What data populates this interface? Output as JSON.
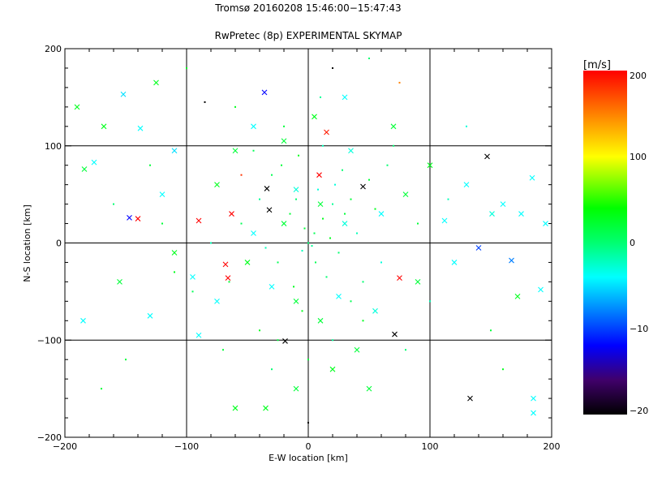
{
  "chart_data": {
    "type": "scatter",
    "title": "Tromsø 20160208 15:46:00−15:47:43",
    "subtitle": "RwPretec (8p) EXPERIMENTAL SKYMAP",
    "xlabel": "E-W location [km]",
    "ylabel": "N-S location [km]",
    "xlim": [
      -200,
      200
    ],
    "ylim": [
      -200,
      200
    ],
    "xticks": [
      -200,
      -100,
      0,
      100,
      200
    ],
    "yticks": [
      -200,
      -100,
      0,
      100,
      200
    ],
    "xtick_labels": [
      "−200",
      "−100",
      "0",
      "100",
      "200"
    ],
    "ytick_labels": [
      "−200",
      "−100",
      "0",
      "100",
      "200"
    ],
    "grid": [
      -100,
      0,
      100
    ],
    "colorbar": {
      "label": "[m/s]",
      "range": [
        -200,
        200
      ],
      "ticks": [
        200,
        100,
        0,
        -100,
        -200
      ],
      "tick_labels": [
        "200",
        "100",
        "0",
        "−100",
        "−200"
      ],
      "stops": [
        {
          "v": -200,
          "color": "#000000"
        },
        {
          "v": -160,
          "color": "#40006a"
        },
        {
          "v": -120,
          "color": "#0000ff"
        },
        {
          "v": -80,
          "color": "#0080ff"
        },
        {
          "v": -40,
          "color": "#00ffff"
        },
        {
          "v": 0,
          "color": "#00ff70"
        },
        {
          "v": 40,
          "color": "#00ff00"
        },
        {
          "v": 100,
          "color": "#ffff00"
        },
        {
          "v": 150,
          "color": "#ff8000"
        },
        {
          "v": 200,
          "color": "#ff0000"
        }
      ]
    },
    "point_fields": [
      "x_km",
      "y_km",
      "velocity_ms",
      "marker(0=dot,1=cross)"
    ],
    "points": [
      [
        147,
        89,
        -200,
        1
      ],
      [
        133,
        -160,
        -200,
        1
      ],
      [
        71,
        -94,
        -200,
        1
      ],
      [
        -19,
        -101,
        -200,
        1
      ],
      [
        -147,
        26,
        -120,
        1
      ],
      [
        -140,
        25,
        200,
        1
      ],
      [
        -90,
        23,
        200,
        1
      ],
      [
        75,
        -36,
        200,
        1
      ],
      [
        -36,
        155,
        -120,
        1
      ],
      [
        9,
        70,
        200,
        1
      ],
      [
        15,
        114,
        190,
        1
      ],
      [
        185,
        -175,
        -40,
        1
      ],
      [
        167,
        -18,
        -80,
        1
      ],
      [
        140,
        -5,
        -100,
        1
      ],
      [
        -32,
        34,
        -200,
        1
      ],
      [
        -34,
        56,
        -200,
        1
      ],
      [
        45,
        58,
        -200,
        1
      ],
      [
        -63,
        30,
        200,
        1
      ],
      [
        -66,
        -36,
        200,
        1
      ],
      [
        -68,
        -22,
        200,
        1
      ],
      [
        -152,
        153,
        -50,
        1
      ],
      [
        -168,
        120,
        30,
        1
      ],
      [
        184,
        67,
        -40,
        1
      ],
      [
        151,
        30,
        -30,
        1
      ],
      [
        112,
        23,
        -40,
        1
      ],
      [
        172,
        -55,
        30,
        1
      ],
      [
        191,
        -48,
        -40,
        1
      ],
      [
        -184,
        76,
        20,
        1
      ],
      [
        -176,
        83,
        -40,
        1
      ],
      [
        -138,
        118,
        -40,
        1
      ],
      [
        -125,
        165,
        30,
        1
      ],
      [
        -110,
        95,
        -50,
        1
      ],
      [
        -120,
        50,
        -40,
        1
      ],
      [
        -95,
        -35,
        -40,
        1
      ],
      [
        -130,
        -75,
        -40,
        1
      ],
      [
        -155,
        -40,
        20,
        1
      ],
      [
        -185,
        -80,
        -40,
        1
      ],
      [
        -60,
        -170,
        30,
        1
      ],
      [
        -35,
        -170,
        30,
        1
      ],
      [
        -10,
        -150,
        20,
        1
      ],
      [
        20,
        -130,
        30,
        1
      ],
      [
        40,
        -110,
        20,
        1
      ],
      [
        55,
        -70,
        -30,
        1
      ],
      [
        90,
        -40,
        20,
        1
      ],
      [
        120,
        -20,
        -40,
        1
      ],
      [
        160,
        40,
        -40,
        1
      ],
      [
        175,
        30,
        -40,
        1
      ],
      [
        195,
        20,
        -40,
        1
      ],
      [
        130,
        60,
        -40,
        1
      ],
      [
        100,
        80,
        30,
        1
      ],
      [
        80,
        50,
        20,
        1
      ],
      [
        60,
        30,
        -40,
        1
      ],
      [
        30,
        20,
        -30,
        1
      ],
      [
        10,
        40,
        20,
        1
      ],
      [
        -10,
        55,
        -30,
        1
      ],
      [
        -20,
        20,
        20,
        1
      ],
      [
        -45,
        10,
        -40,
        1
      ],
      [
        -50,
        -20,
        30,
        1
      ],
      [
        -30,
        -45,
        -40,
        1
      ],
      [
        -10,
        -60,
        20,
        1
      ],
      [
        10,
        -80,
        20,
        1
      ],
      [
        25,
        -55,
        -40,
        1
      ],
      [
        -75,
        60,
        30,
        1
      ],
      [
        -60,
        95,
        20,
        1
      ],
      [
        -45,
        120,
        -40,
        1
      ],
      [
        -20,
        105,
        20,
        1
      ],
      [
        5,
        130,
        30,
        1
      ],
      [
        35,
        95,
        -30,
        1
      ],
      [
        -75,
        -60,
        -40,
        1
      ],
      [
        -110,
        -10,
        30,
        1
      ],
      [
        -90,
        -95,
        -40,
        1
      ],
      [
        50,
        -150,
        20,
        1
      ],
      [
        185,
        -160,
        -40,
        1
      ],
      [
        -190,
        140,
        30,
        1
      ],
      [
        30,
        150,
        -40,
        1
      ],
      [
        70,
        120,
        20,
        1
      ],
      [
        0,
        0,
        0,
        0
      ],
      [
        5,
        10,
        10,
        0
      ],
      [
        -5,
        -8,
        -20,
        0
      ],
      [
        12,
        25,
        30,
        0
      ],
      [
        20,
        40,
        -10,
        0
      ],
      [
        -15,
        30,
        20,
        0
      ],
      [
        25,
        -10,
        0,
        0
      ],
      [
        -25,
        -20,
        10,
        0
      ],
      [
        8,
        55,
        -30,
        0
      ],
      [
        35,
        45,
        20,
        0
      ],
      [
        -30,
        70,
        10,
        0
      ],
      [
        40,
        10,
        -20,
        0
      ],
      [
        -8,
        90,
        30,
        0
      ],
      [
        15,
        -35,
        0,
        0
      ],
      [
        -40,
        45,
        -10,
        0
      ],
      [
        50,
        65,
        20,
        0
      ],
      [
        -55,
        20,
        10,
        0
      ],
      [
        60,
        -20,
        -30,
        0
      ],
      [
        -12,
        -45,
        30,
        0
      ],
      [
        28,
        75,
        0,
        0
      ],
      [
        -20,
        120,
        20,
        0
      ],
      [
        10,
        150,
        -10,
        0
      ],
      [
        -60,
        140,
        30,
        0
      ],
      [
        70,
        100,
        0,
        0
      ],
      [
        -80,
        0,
        -20,
        0
      ],
      [
        90,
        20,
        20,
        0
      ],
      [
        -95,
        -50,
        10,
        0
      ],
      [
        -40,
        -90,
        30,
        0
      ],
      [
        20,
        -100,
        -10,
        0
      ],
      [
        0,
        -120,
        20,
        0
      ],
      [
        -30,
        -130,
        0,
        0
      ],
      [
        45,
        -80,
        30,
        0
      ],
      [
        -70,
        -110,
        20,
        0
      ],
      [
        100,
        -60,
        -20,
        0
      ],
      [
        -120,
        20,
        20,
        0
      ],
      [
        130,
        120,
        -30,
        0
      ],
      [
        -150,
        -120,
        20,
        0
      ],
      [
        -100,
        180,
        30,
        0
      ],
      [
        50,
        190,
        0,
        0
      ],
      [
        150,
        -90,
        20,
        0
      ],
      [
        0,
        -185,
        -200,
        0
      ],
      [
        20,
        180,
        -200,
        0
      ],
      [
        -85,
        145,
        -200,
        0
      ],
      [
        -55,
        70,
        180,
        0
      ],
      [
        75,
        165,
        150,
        0
      ],
      [
        -3,
        15,
        20,
        0
      ],
      [
        3,
        -3,
        -10,
        0
      ],
      [
        18,
        5,
        30,
        0
      ],
      [
        -10,
        45,
        0,
        0
      ],
      [
        30,
        30,
        20,
        0
      ],
      [
        -35,
        -5,
        -20,
        0
      ],
      [
        6,
        -20,
        10,
        0
      ],
      [
        22,
        60,
        -30,
        0
      ],
      [
        -22,
        80,
        20,
        0
      ],
      [
        45,
        -40,
        0,
        0
      ],
      [
        55,
        35,
        30,
        0
      ],
      [
        -45,
        95,
        10,
        0
      ],
      [
        12,
        100,
        -20,
        0
      ],
      [
        -65,
        -40,
        20,
        0
      ],
      [
        65,
        80,
        0,
        0
      ],
      [
        -5,
        -70,
        30,
        0
      ],
      [
        35,
        -60,
        10,
        0
      ],
      [
        -25,
        -100,
        20,
        0
      ],
      [
        80,
        -110,
        0,
        0
      ],
      [
        -110,
        -30,
        30,
        0
      ],
      [
        115,
        45,
        -20,
        0
      ],
      [
        -130,
        80,
        20,
        0
      ],
      [
        160,
        -130,
        30,
        0
      ],
      [
        -170,
        -150,
        20,
        0
      ],
      [
        -160,
        40,
        0,
        0
      ]
    ]
  }
}
